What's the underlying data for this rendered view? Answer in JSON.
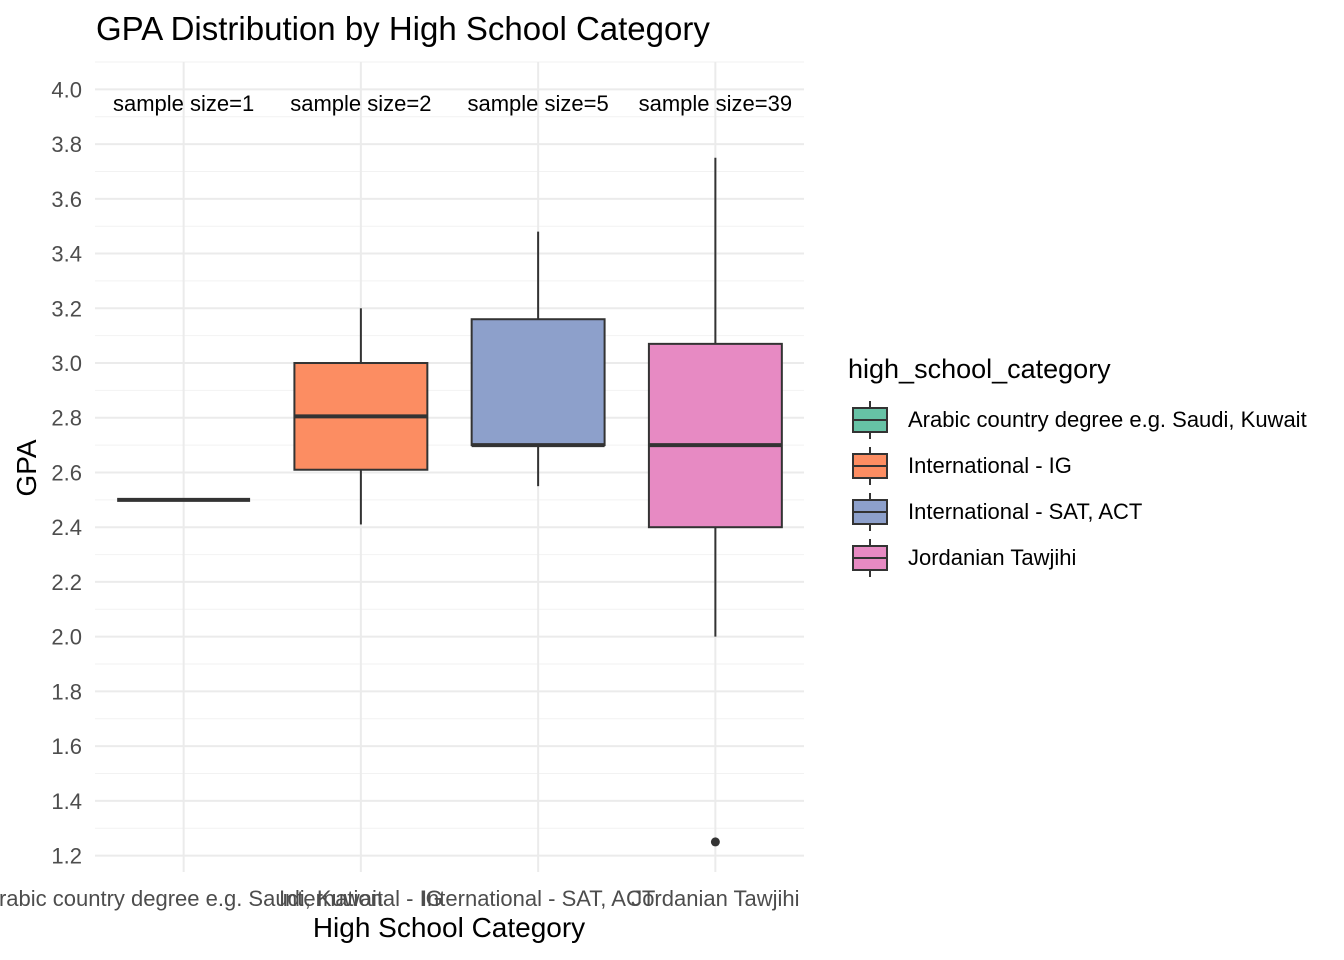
{
  "chart_data": {
    "type": "box",
    "title": "GPA Distribution by High School Category",
    "xlabel": "High School Category",
    "ylabel": "GPA",
    "ylim": [
      1.14,
      4.1
    ],
    "yticks": [
      "1.2",
      "1.4",
      "1.6",
      "1.8",
      "2.0",
      "2.2",
      "2.4",
      "2.6",
      "2.8",
      "3.0",
      "3.2",
      "3.4",
      "3.6",
      "3.8",
      "4.0"
    ],
    "grid": true,
    "legend_title": "high_school_category",
    "legend_placement": "right",
    "categories": [
      "Arabic country degree e.g. Saudi, Kuwait",
      "International - IG",
      "International - SAT, ACT",
      "Jordanian Tawjihi"
    ],
    "annotation_y": 3.95,
    "series": [
      {
        "name": "Arabic country degree e.g. Saudi, Kuwait",
        "color": "#66C2A5",
        "min": 2.5,
        "q1": 2.5,
        "median": 2.5,
        "q3": 2.5,
        "max": 2.5,
        "outliers": [],
        "annotation": "sample size=1"
      },
      {
        "name": "International - IG",
        "color": "#FC8D62",
        "min": 2.41,
        "q1": 2.61,
        "median": 2.805,
        "q3": 3.0,
        "max": 3.2,
        "outliers": [],
        "annotation": "sample size=2"
      },
      {
        "name": "International - SAT, ACT",
        "color": "#8DA0CB",
        "min": 2.55,
        "q1": 2.7,
        "median": 2.7,
        "q3": 3.16,
        "max": 3.48,
        "outliers": [],
        "annotation": "sample size=5"
      },
      {
        "name": "Jordanian Tawjihi",
        "color": "#E78AC3",
        "min": 2.0,
        "q1": 2.4,
        "median": 2.7,
        "q3": 3.07,
        "max": 3.75,
        "outliers": [
          1.25
        ],
        "annotation": "sample size=39"
      }
    ]
  }
}
